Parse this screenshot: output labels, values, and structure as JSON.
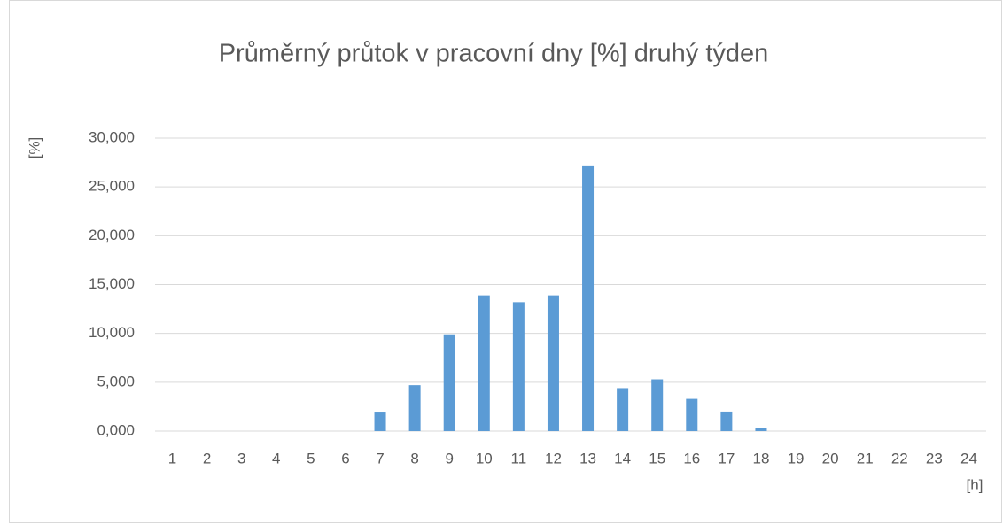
{
  "chart_data": {
    "type": "bar",
    "title": "Průměrný průtok v pracovní dny [%] druhý týden",
    "y_label": "[%]",
    "x_label": "[h]",
    "categories": [
      "1",
      "2",
      "3",
      "4",
      "5",
      "6",
      "7",
      "8",
      "9",
      "10",
      "11",
      "12",
      "13",
      "14",
      "15",
      "16",
      "17",
      "18",
      "19",
      "20",
      "21",
      "22",
      "23",
      "24"
    ],
    "values": [
      0,
      0,
      0,
      0,
      0,
      0,
      1900,
      4700,
      9900,
      13900,
      13200,
      13900,
      27200,
      4400,
      5300,
      3300,
      2000,
      300,
      0,
      0,
      0,
      0,
      0,
      0
    ],
    "color": "#5b9bd5",
    "ylim": [
      0,
      30000
    ],
    "yticks": [
      {
        "value": 0,
        "label": "0,000"
      },
      {
        "value": 5000,
        "label": "5,000"
      },
      {
        "value": 10000,
        "label": "10,000"
      },
      {
        "value": 15000,
        "label": "15,000"
      },
      {
        "value": 20000,
        "label": "20,000"
      },
      {
        "value": 25000,
        "label": "25,000"
      },
      {
        "value": 30000,
        "label": "30,000"
      }
    ],
    "grid": true
  }
}
